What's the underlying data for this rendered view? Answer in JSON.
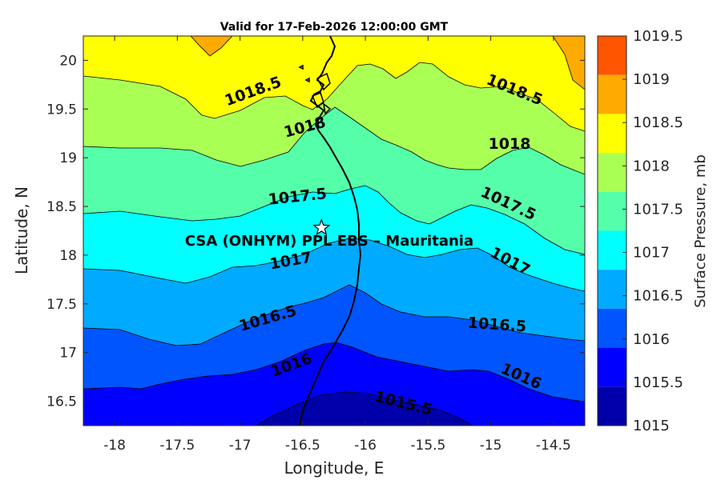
{
  "title": "Valid for 17-Feb-2026 12:00:00 GMT",
  "map": {
    "xlabel": "Longitude, E",
    "ylabel": "Latitude, N",
    "x_ticks": [
      "-18",
      "-17.5",
      "-17",
      "-16.5",
      "-16",
      "-15.5",
      "-15",
      "-14.5"
    ],
    "y_ticks": [
      "20",
      "19.5",
      "19",
      "18.5",
      "18",
      "17.5",
      "17",
      "16.5"
    ],
    "site_label": "CSA (ONHYM) PPL EBS  – Mauritania",
    "site_lon": -16.35,
    "site_lat": 18.28
  },
  "contour_labels": [
    {
      "text": "1018.5"
    },
    {
      "text": "1018.5"
    },
    {
      "text": "1018"
    },
    {
      "text": "1018"
    },
    {
      "text": "1017.5"
    },
    {
      "text": "1017.5"
    },
    {
      "text": "1017"
    },
    {
      "text": "1017"
    },
    {
      "text": "1016.5"
    },
    {
      "text": "1016.5"
    },
    {
      "text": "1016"
    },
    {
      "text": "1016"
    },
    {
      "text": "1015.5"
    }
  ],
  "colorbar": {
    "label": "Surface Pressure, mb",
    "ticks": [
      "1019.5",
      "1019",
      "1018.5",
      "1018",
      "1017.5",
      "1017",
      "1016.5",
      "1016",
      "1015.5",
      "1015"
    ],
    "colors": [
      "#ff5500",
      "#ffaa00",
      "#ffff00",
      "#aaff55",
      "#55ffaa",
      "#00ffff",
      "#00aaff",
      "#0055ff",
      "#0000ff",
      "#0000aa"
    ]
  }
}
